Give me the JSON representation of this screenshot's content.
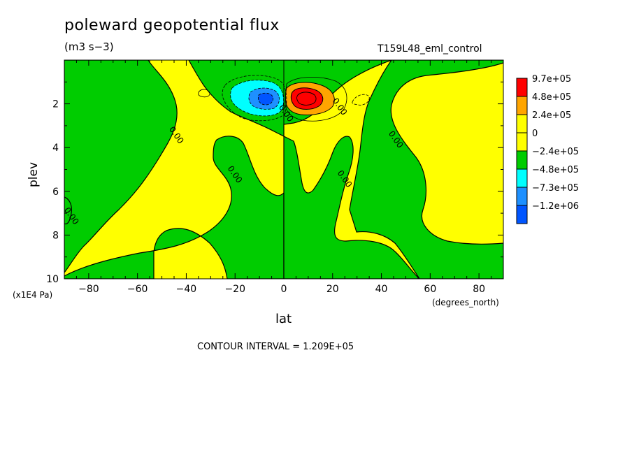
{
  "header": {
    "title": "poleward geopotential flux",
    "units": "(m3 s−3)",
    "run": "T159L48_eml_control"
  },
  "footer": {
    "contour_interval": "CONTOUR INTERVAL = 1.209E+05"
  },
  "colors": {
    "red": "#ff0000",
    "orange": "#ffa500",
    "yellow": "#ffff00",
    "green": "#00cc00",
    "cyan": "#00ffff",
    "blue1": "#1e90ff",
    "blue2": "#0055ff"
  },
  "chart_data": {
    "type": "heatmap",
    "title": "poleward geopotential flux",
    "units": "(m3 s−3)",
    "xlabel": "lat",
    "xunits": "(degrees_north)",
    "ylabel": "plev",
    "yunits": "(x1E4 Pa)",
    "xlim": [
      -90,
      90
    ],
    "ylim": [
      10,
      0
    ],
    "xticks": [
      -80,
      -60,
      -40,
      -20,
      0,
      20,
      40,
      60,
      80
    ],
    "yticks": [
      2,
      4,
      6,
      8,
      10
    ],
    "legend": {
      "placement": "right",
      "levels": [
        "9.7e+05",
        "4.8e+05",
        "2.4e+05",
        "0",
        "−2.4e+05",
        "−4.8e+05",
        "−7.3e+05",
        "−1.2e+06"
      ],
      "colors": [
        "#ff0000",
        "#ffa500",
        "#ffff00",
        "#ffff00",
        "#00cc00",
        "#00ffff",
        "#1e90ff",
        "#0055ff"
      ]
    },
    "contour_labels": [
      {
        "text": "0.00",
        "lat": -45,
        "plev": 3.5
      },
      {
        "text": "0.00",
        "lat": -21,
        "plev": 5.3
      },
      {
        "text": "0.00",
        "lat": -88,
        "plev": 7.2
      },
      {
        "text": "0.00",
        "lat": 24,
        "plev": 5.5
      },
      {
        "text": "0.00",
        "lat": 22,
        "plev": 2.2
      },
      {
        "text": "0.00",
        "lat": 45,
        "plev": 3.7
      },
      {
        "text": "0.00",
        "lat": 0,
        "plev": 2.5
      }
    ],
    "features": [
      {
        "sign": "negative",
        "center_lat": -8,
        "center_plev": 2.0,
        "peak": "−1.2e+06"
      },
      {
        "sign": "positive",
        "center_lat": 9,
        "center_plev": 2.0,
        "peak": "9.7e+05"
      }
    ]
  }
}
